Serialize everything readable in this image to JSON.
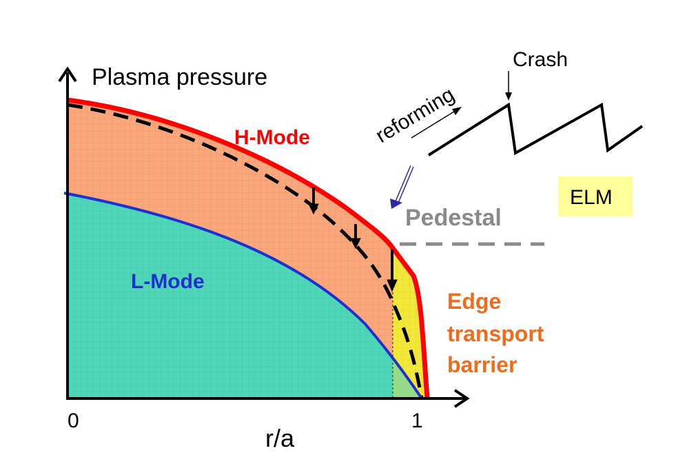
{
  "labels": {
    "y_axis": "Plasma pressure",
    "x_axis": "r/a",
    "x_tick_0": "0",
    "x_tick_1": "1",
    "h_mode": "H-Mode",
    "l_mode": "L-Mode",
    "pedestal": "Pedestal",
    "edge_line1": "Edge",
    "edge_line2": "transport",
    "edge_line3": "barrier",
    "crash": "Crash",
    "reforming": "reforming",
    "elm": "ELM"
  },
  "colors": {
    "h_mode_curve": "#ff0000",
    "l_mode_curve": "#1f2fd0",
    "h_mode_fill": "#f9a77c",
    "l_mode_fill": "#4fd6b8",
    "barrier_fill": "#f2e83a",
    "pedestal_text": "#8a8a8a",
    "edge_text": "#f26b1d",
    "elm_box": "#ffff99",
    "arrow_blue": "#2a2aa8"
  }
}
